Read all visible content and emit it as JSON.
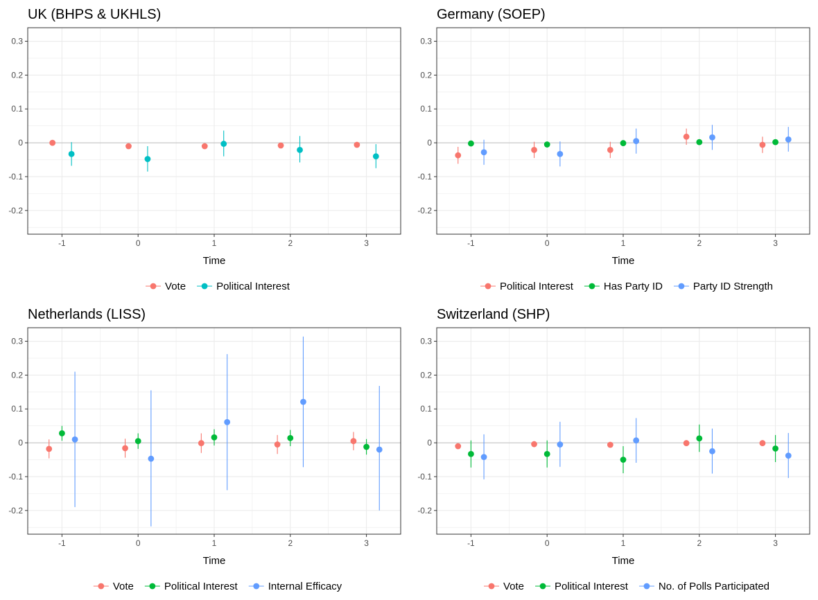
{
  "colors": {
    "red": "#F8766D",
    "green": "#00BA38",
    "blue": "#619CFF",
    "teal": "#00BFC4",
    "grid": "#ebebeb",
    "zero": "#bdbdbd",
    "frame": "#333333"
  },
  "chart_data": [
    {
      "type": "scatter",
      "title": "UK (BHPS & UKHLS)",
      "xlabel": "Time",
      "ylabel": "",
      "x": [
        -1,
        0,
        1,
        2,
        3
      ],
      "xlim": [
        -1.45,
        3.45
      ],
      "ylim": [
        -0.27,
        0.34
      ],
      "y_ticks": [
        -0.2,
        -0.1,
        0,
        0.1,
        0.2,
        0.3
      ],
      "y_tick_labels": [
        "-0.2",
        "-0.1",
        "0",
        "0.1",
        "0.2",
        "0.3"
      ],
      "x_tick_labels": [
        "-1",
        "0",
        "1",
        "2",
        "3"
      ],
      "legend_position": "bottom",
      "series": [
        {
          "name": "Vote",
          "color": "#F8766D",
          "values": [
            0.0,
            -0.01,
            -0.01,
            -0.008,
            -0.006
          ],
          "lower": [
            -0.004,
            -0.015,
            -0.015,
            -0.013,
            -0.011
          ],
          "upper": [
            0.004,
            -0.005,
            -0.005,
            -0.003,
            -0.001
          ]
        },
        {
          "name": "Political Interest",
          "color": "#00BFC4",
          "values": [
            -0.033,
            -0.048,
            -0.003,
            -0.021,
            -0.04
          ],
          "lower": [
            -0.068,
            -0.085,
            -0.04,
            -0.058,
            -0.075
          ],
          "upper": [
            0.002,
            -0.01,
            0.036,
            0.02,
            -0.004
          ]
        }
      ]
    },
    {
      "type": "scatter",
      "title": "Germany (SOEP)",
      "xlabel": "Time",
      "ylabel": "",
      "x": [
        -1,
        0,
        1,
        2,
        3
      ],
      "xlim": [
        -1.45,
        3.45
      ],
      "ylim": [
        -0.27,
        0.34
      ],
      "y_ticks": [
        -0.2,
        -0.1,
        0,
        0.1,
        0.2,
        0.3
      ],
      "y_tick_labels": [
        "-0.2",
        "-0.1",
        "0",
        "0.1",
        "0.2",
        "0.3"
      ],
      "x_tick_labels": [
        "-1",
        "0",
        "1",
        "2",
        "3"
      ],
      "legend_position": "bottom",
      "series": [
        {
          "name": "Political Interest",
          "color": "#F8766D",
          "values": [
            -0.037,
            -0.021,
            -0.021,
            0.018,
            -0.006
          ],
          "lower": [
            -0.062,
            -0.045,
            -0.045,
            -0.006,
            -0.03
          ],
          "upper": [
            -0.012,
            0.003,
            0.003,
            0.042,
            0.018
          ]
        },
        {
          "name": "Has Party ID",
          "color": "#00BA38",
          "values": [
            -0.002,
            -0.005,
            -0.001,
            0.002,
            0.002
          ],
          "lower": [
            -0.006,
            -0.009,
            -0.005,
            -0.002,
            -0.002
          ],
          "upper": [
            0.002,
            -0.001,
            0.003,
            0.006,
            0.006
          ]
        },
        {
          "name": "Party ID Strength",
          "color": "#619CFF",
          "values": [
            -0.028,
            -0.033,
            0.005,
            0.016,
            0.01
          ],
          "lower": [
            -0.065,
            -0.07,
            -0.032,
            -0.021,
            -0.026
          ],
          "upper": [
            0.009,
            0.004,
            0.042,
            0.053,
            0.047
          ]
        }
      ]
    },
    {
      "type": "scatter",
      "title": "Netherlands (LISS)",
      "xlabel": "Time",
      "ylabel": "",
      "x": [
        -1,
        0,
        1,
        2,
        3
      ],
      "xlim": [
        -1.45,
        3.45
      ],
      "ylim": [
        -0.27,
        0.34
      ],
      "y_ticks": [
        -0.2,
        -0.1,
        0,
        0.1,
        0.2,
        0.3
      ],
      "y_tick_labels": [
        "-0.2",
        "-0.1",
        "0",
        "0.1",
        "0.2",
        "0.3"
      ],
      "x_tick_labels": [
        "-1",
        "0",
        "1",
        "2",
        "3"
      ],
      "legend_position": "bottom",
      "series": [
        {
          "name": "Vote",
          "color": "#F8766D",
          "values": [
            -0.018,
            -0.016,
            -0.001,
            -0.005,
            0.005
          ],
          "lower": [
            -0.046,
            -0.044,
            -0.03,
            -0.033,
            -0.022
          ],
          "upper": [
            0.01,
            0.012,
            0.028,
            0.023,
            0.032
          ]
        },
        {
          "name": "Political Interest",
          "color": "#00BA38",
          "values": [
            0.028,
            0.005,
            0.016,
            0.014,
            -0.012
          ],
          "lower": [
            0.006,
            -0.018,
            -0.008,
            -0.01,
            -0.035
          ],
          "upper": [
            0.05,
            0.028,
            0.04,
            0.038,
            0.011
          ]
        },
        {
          "name": "Internal Efficacy",
          "color": "#619CFF",
          "values": [
            0.01,
            -0.047,
            0.061,
            0.121,
            -0.02
          ],
          "lower": [
            -0.19,
            -0.247,
            -0.14,
            -0.072,
            -0.2
          ],
          "upper": [
            0.21,
            0.155,
            0.262,
            0.314,
            0.168
          ]
        }
      ]
    },
    {
      "type": "scatter",
      "title": "Switzerland (SHP)",
      "xlabel": "Time",
      "ylabel": "",
      "x": [
        -1,
        0,
        1,
        2,
        3
      ],
      "xlim": [
        -1.45,
        3.45
      ],
      "ylim": [
        -0.27,
        0.34
      ],
      "y_ticks": [
        -0.2,
        -0.1,
        0,
        0.1,
        0.2,
        0.3
      ],
      "y_tick_labels": [
        "-0.2",
        "-0.1",
        "0",
        "0.1",
        "0.2",
        "0.3"
      ],
      "x_tick_labels": [
        "-1",
        "0",
        "1",
        "2",
        "3"
      ],
      "legend_position": "bottom",
      "series": [
        {
          "name": "Vote",
          "color": "#F8766D",
          "values": [
            -0.01,
            -0.004,
            -0.006,
            -0.001,
            -0.001
          ],
          "lower": [
            -0.016,
            -0.01,
            -0.012,
            -0.007,
            -0.007
          ],
          "upper": [
            -0.004,
            0.002,
            0.0,
            0.005,
            0.005
          ]
        },
        {
          "name": "Political Interest",
          "color": "#00BA38",
          "values": [
            -0.033,
            -0.033,
            -0.05,
            0.013,
            -0.017
          ],
          "lower": [
            -0.073,
            -0.073,
            -0.09,
            -0.027,
            -0.057
          ],
          "upper": [
            0.007,
            0.007,
            -0.01,
            0.054,
            0.023
          ]
        },
        {
          "name": "No. of Polls Participated",
          "color": "#619CFF",
          "values": [
            -0.042,
            -0.005,
            0.007,
            -0.025,
            -0.038
          ],
          "lower": [
            -0.108,
            -0.071,
            -0.059,
            -0.091,
            -0.104
          ],
          "upper": [
            0.025,
            0.062,
            0.073,
            0.042,
            0.029
          ]
        }
      ]
    }
  ]
}
